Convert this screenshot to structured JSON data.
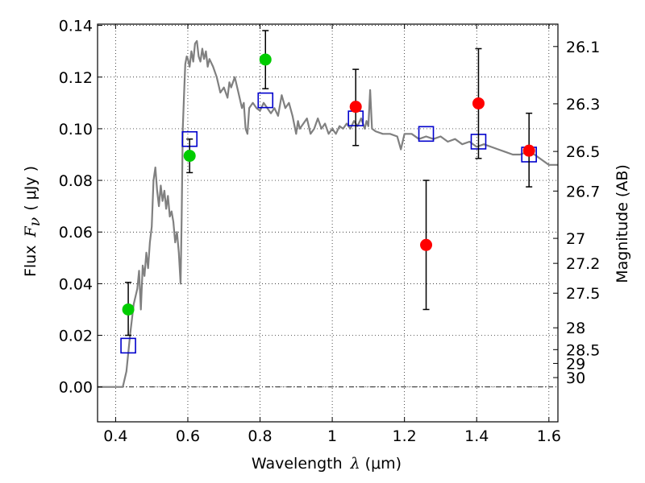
{
  "chart_data": {
    "type": "scatter",
    "title": "",
    "xlabel": {
      "prefix": "Wavelength",
      "symbol": "λ",
      "unit": "(μm)"
    },
    "ylabel": {
      "prefix": "Flux",
      "symbol": "F",
      "subscript": "ν",
      "unit": "( μJy )"
    },
    "y2label": "Magnitude (AB)",
    "xlim": [
      0.35,
      1.625
    ],
    "ylim": [
      -0.0135,
      0.1405
    ],
    "grid": true,
    "grid_style": "dotted",
    "x_ticks": [
      {
        "value": 0.4,
        "label": "0.4"
      },
      {
        "value": 0.6,
        "label": "0.6"
      },
      {
        "value": 0.8,
        "label": "0.8"
      },
      {
        "value": 1.0,
        "label": "1"
      },
      {
        "value": 1.2,
        "label": "1.2"
      },
      {
        "value": 1.4,
        "label": "1.4"
      },
      {
        "value": 1.6,
        "label": "1.6"
      }
    ],
    "y_ticks": [
      {
        "value": 0.0,
        "label": "0.00"
      },
      {
        "value": 0.02,
        "label": "0.02"
      },
      {
        "value": 0.04,
        "label": "0.04"
      },
      {
        "value": 0.06,
        "label": "0.06"
      },
      {
        "value": 0.08,
        "label": "0.08"
      },
      {
        "value": 0.1,
        "label": "0.10"
      },
      {
        "value": 0.12,
        "label": "0.12"
      },
      {
        "value": 0.14,
        "label": "0.14"
      }
    ],
    "y2_ticks": [
      {
        "mag": 26.1,
        "label": "26.1"
      },
      {
        "mag": 26.3,
        "label": "26.3"
      },
      {
        "mag": 26.5,
        "label": "26.5"
      },
      {
        "mag": 26.7,
        "label": "26.7"
      },
      {
        "mag": 27.0,
        "label": "27"
      },
      {
        "mag": 27.2,
        "label": "27.2"
      },
      {
        "mag": 27.5,
        "label": "27.5"
      },
      {
        "mag": 28.0,
        "label": "28"
      },
      {
        "mag": 28.5,
        "label": "28.5"
      },
      {
        "mag": 29.0,
        "label": "29"
      },
      {
        "mag": 30.0,
        "label": "30"
      }
    ],
    "series": [
      {
        "kind": "line",
        "color": "#808080",
        "points": [
          [
            0.35,
            0.0
          ],
          [
            0.42,
            0.0
          ],
          [
            0.43,
            0.006
          ],
          [
            0.44,
            0.02
          ],
          [
            0.45,
            0.032
          ],
          [
            0.46,
            0.038
          ],
          [
            0.465,
            0.045
          ],
          [
            0.47,
            0.03
          ],
          [
            0.475,
            0.047
          ],
          [
            0.48,
            0.043
          ],
          [
            0.485,
            0.052
          ],
          [
            0.49,
            0.046
          ],
          [
            0.495,
            0.056
          ],
          [
            0.5,
            0.062
          ],
          [
            0.505,
            0.08
          ],
          [
            0.51,
            0.085
          ],
          [
            0.515,
            0.076
          ],
          [
            0.52,
            0.07
          ],
          [
            0.525,
            0.078
          ],
          [
            0.53,
            0.072
          ],
          [
            0.535,
            0.076
          ],
          [
            0.54,
            0.069
          ],
          [
            0.545,
            0.074
          ],
          [
            0.55,
            0.066
          ],
          [
            0.555,
            0.068
          ],
          [
            0.56,
            0.064
          ],
          [
            0.565,
            0.056
          ],
          [
            0.57,
            0.06
          ],
          [
            0.575,
            0.052
          ],
          [
            0.58,
            0.04
          ],
          [
            0.583,
            0.065
          ],
          [
            0.586,
            0.1
          ],
          [
            0.59,
            0.115
          ],
          [
            0.593,
            0.125
          ],
          [
            0.597,
            0.128
          ],
          [
            0.6,
            0.127
          ],
          [
            0.605,
            0.124
          ],
          [
            0.61,
            0.13
          ],
          [
            0.615,
            0.126
          ],
          [
            0.62,
            0.133
          ],
          [
            0.625,
            0.134
          ],
          [
            0.63,
            0.128
          ],
          [
            0.635,
            0.126
          ],
          [
            0.64,
            0.131
          ],
          [
            0.645,
            0.127
          ],
          [
            0.65,
            0.13
          ],
          [
            0.655,
            0.124
          ],
          [
            0.66,
            0.127
          ],
          [
            0.67,
            0.124
          ],
          [
            0.68,
            0.12
          ],
          [
            0.69,
            0.114
          ],
          [
            0.7,
            0.116
          ],
          [
            0.71,
            0.112
          ],
          [
            0.715,
            0.118
          ],
          [
            0.72,
            0.116
          ],
          [
            0.73,
            0.12
          ],
          [
            0.74,
            0.114
          ],
          [
            0.75,
            0.108
          ],
          [
            0.755,
            0.11
          ],
          [
            0.76,
            0.1
          ],
          [
            0.765,
            0.098
          ],
          [
            0.77,
            0.108
          ],
          [
            0.78,
            0.11
          ],
          [
            0.79,
            0.108
          ],
          [
            0.8,
            0.107
          ],
          [
            0.81,
            0.11
          ],
          [
            0.82,
            0.108
          ],
          [
            0.83,
            0.106
          ],
          [
            0.84,
            0.108
          ],
          [
            0.85,
            0.105
          ],
          [
            0.86,
            0.113
          ],
          [
            0.87,
            0.108
          ],
          [
            0.88,
            0.11
          ],
          [
            0.89,
            0.105
          ],
          [
            0.9,
            0.098
          ],
          [
            0.905,
            0.103
          ],
          [
            0.91,
            0.1
          ],
          [
            0.92,
            0.102
          ],
          [
            0.93,
            0.104
          ],
          [
            0.94,
            0.098
          ],
          [
            0.95,
            0.1
          ],
          [
            0.96,
            0.104
          ],
          [
            0.97,
            0.1
          ],
          [
            0.98,
            0.102
          ],
          [
            0.99,
            0.098
          ],
          [
            1.0,
            0.1
          ],
          [
            1.01,
            0.098
          ],
          [
            1.02,
            0.101
          ],
          [
            1.03,
            0.1
          ],
          [
            1.04,
            0.102
          ],
          [
            1.05,
            0.1
          ],
          [
            1.06,
            0.103
          ],
          [
            1.07,
            0.101
          ],
          [
            1.08,
            0.104
          ],
          [
            1.09,
            0.1
          ],
          [
            1.095,
            0.103
          ],
          [
            1.1,
            0.101
          ],
          [
            1.105,
            0.115
          ],
          [
            1.11,
            0.1
          ],
          [
            1.12,
            0.099
          ],
          [
            1.14,
            0.098
          ],
          [
            1.16,
            0.098
          ],
          [
            1.18,
            0.097
          ],
          [
            1.19,
            0.092
          ],
          [
            1.2,
            0.098
          ],
          [
            1.22,
            0.098
          ],
          [
            1.24,
            0.096
          ],
          [
            1.26,
            0.097
          ],
          [
            1.28,
            0.096
          ],
          [
            1.3,
            0.097
          ],
          [
            1.32,
            0.095
          ],
          [
            1.34,
            0.096
          ],
          [
            1.36,
            0.094
          ],
          [
            1.38,
            0.095
          ],
          [
            1.4,
            0.093
          ],
          [
            1.42,
            0.094
          ],
          [
            1.44,
            0.093
          ],
          [
            1.46,
            0.092
          ],
          [
            1.48,
            0.091
          ],
          [
            1.5,
            0.09
          ],
          [
            1.52,
            0.09
          ],
          [
            1.54,
            0.091
          ],
          [
            1.56,
            0.09
          ],
          [
            1.58,
            0.088
          ],
          [
            1.6,
            0.086
          ],
          [
            1.625,
            0.086
          ]
        ]
      },
      {
        "kind": "squares",
        "color": "#0000cc",
        "points": [
          [
            0.435,
            0.016
          ],
          [
            0.605,
            0.096
          ],
          [
            0.815,
            0.111
          ],
          [
            1.065,
            0.104
          ],
          [
            1.26,
            0.098
          ],
          [
            1.405,
            0.095
          ],
          [
            1.545,
            0.09
          ]
        ]
      },
      {
        "kind": "points",
        "color": "#00cc00",
        "points": [
          {
            "x": 0.435,
            "y": 0.03,
            "err_low": 0.02,
            "err_high": 0.0405
          },
          {
            "x": 0.605,
            "y": 0.0895,
            "err_low": 0.083,
            "err_high": 0.096
          },
          {
            "x": 0.815,
            "y": 0.1268,
            "err_low": 0.1155,
            "err_high": 0.138
          }
        ]
      },
      {
        "kind": "points",
        "color": "#ff0000",
        "points": [
          {
            "x": 1.065,
            "y": 0.1085,
            "err_low": 0.0935,
            "err_high": 0.123
          },
          {
            "x": 1.26,
            "y": 0.055,
            "err_low": 0.03,
            "err_high": 0.08
          },
          {
            "x": 1.405,
            "y": 0.1098,
            "err_low": 0.0885,
            "err_high": 0.131
          },
          {
            "x": 1.545,
            "y": 0.0915,
            "err_low": 0.0775,
            "err_high": 0.106
          }
        ]
      }
    ]
  }
}
